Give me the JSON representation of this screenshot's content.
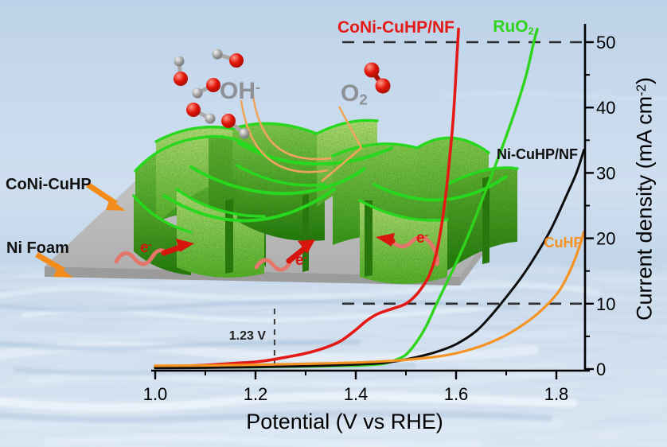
{
  "figure_type": "OER polarization curves with catalyst scheme",
  "inset": {
    "catalyst_label": "CoNi-CuHP",
    "substrate_label": "Ni Foam",
    "hydroxide_base": "OH",
    "hydroxide_sup": "-",
    "oxygen_base": "O",
    "oxygen_sub": "2",
    "electron_base": "e",
    "electron_sup": "-",
    "arrow_color": "#f28c1b",
    "electron_color": "#d8140d",
    "platform_color": "#bcbcbc",
    "nanosheet_color": "#5ab82e"
  },
  "chart_data": {
    "type": "line",
    "title": "",
    "xlabel": "Potential (V vs RHE)",
    "ylabel": "Current density (mA cm-2)",
    "ylabel_parts": [
      "Current density (mA cm",
      "-2",
      ")"
    ],
    "xlim": [
      1.0,
      1.865
    ],
    "ylim": [
      0,
      52.8
    ],
    "grid": false,
    "legend_position": "inline-labels",
    "x_ticks": [
      1.0,
      1.2,
      1.4,
      1.6,
      1.8
    ],
    "x_tick_labels": [
      "1.0",
      "1.2",
      "1.4",
      "1.6",
      "1.8"
    ],
    "x_minor_ticks": [
      1.1,
      1.3,
      1.5,
      1.7
    ],
    "y_ticks": [
      0,
      10,
      20,
      30,
      40,
      50
    ],
    "y_tick_labels": [
      "0",
      "10",
      "20",
      "30",
      "40",
      "50"
    ],
    "y_minor_ticks": [
      5,
      15,
      25,
      35,
      45
    ],
    "reference_hlines": [
      10,
      50
    ],
    "vline": {
      "x": 1.23,
      "label": "1.23 V"
    },
    "series": [
      {
        "name": "CoNi-CuHP/NF",
        "label_base": "CoNi-CuHP/NF",
        "label_sub": "",
        "color": "#e41a17",
        "points": [
          [
            1.0,
            0.3
          ],
          [
            1.05,
            0.45
          ],
          [
            1.1,
            0.6
          ],
          [
            1.15,
            0.85
          ],
          [
            1.2,
            1.1
          ],
          [
            1.23,
            1.4
          ],
          [
            1.26,
            1.8
          ],
          [
            1.3,
            2.4
          ],
          [
            1.34,
            3.3
          ],
          [
            1.37,
            4.3
          ],
          [
            1.4,
            6.0
          ],
          [
            1.42,
            7.3
          ],
          [
            1.44,
            8.3
          ],
          [
            1.46,
            8.9
          ],
          [
            1.48,
            9.4
          ],
          [
            1.5,
            10.0
          ],
          [
            1.52,
            11.3
          ],
          [
            1.54,
            13.4
          ],
          [
            1.55,
            15.0
          ],
          [
            1.56,
            17.5
          ],
          [
            1.57,
            21.5
          ],
          [
            1.58,
            27.0
          ],
          [
            1.59,
            34.5
          ],
          [
            1.595,
            39.0
          ],
          [
            1.6,
            45.5
          ],
          [
            1.603,
            49.5
          ],
          [
            1.605,
            52.0
          ]
        ]
      },
      {
        "name": "RuO2",
        "label_base": "RuO",
        "label_sub": "2",
        "color": "#2fd41c",
        "points": [
          [
            1.0,
            0.2
          ],
          [
            1.1,
            0.25
          ],
          [
            1.2,
            0.3
          ],
          [
            1.3,
            0.4
          ],
          [
            1.4,
            0.55
          ],
          [
            1.44,
            0.7
          ],
          [
            1.46,
            0.9
          ],
          [
            1.48,
            1.4
          ],
          [
            1.5,
            2.2
          ],
          [
            1.52,
            4.0
          ],
          [
            1.54,
            6.5
          ],
          [
            1.56,
            9.8
          ],
          [
            1.58,
            13.0
          ],
          [
            1.6,
            16.2
          ],
          [
            1.63,
            21.5
          ],
          [
            1.66,
            27.5
          ],
          [
            1.69,
            33.5
          ],
          [
            1.72,
            40.0
          ],
          [
            1.74,
            45.0
          ],
          [
            1.755,
            50.0
          ],
          [
            1.762,
            52.0
          ]
        ]
      },
      {
        "name": "Ni-CuHP/NF",
        "label_base": "Ni-CuHP/NF",
        "label_sub": "",
        "color": "#0d0d0d",
        "points": [
          [
            1.0,
            0.15
          ],
          [
            1.1,
            0.2
          ],
          [
            1.2,
            0.3
          ],
          [
            1.3,
            0.45
          ],
          [
            1.4,
            0.7
          ],
          [
            1.45,
            0.9
          ],
          [
            1.48,
            1.2
          ],
          [
            1.52,
            1.8
          ],
          [
            1.56,
            2.6
          ],
          [
            1.6,
            3.8
          ],
          [
            1.64,
            5.8
          ],
          [
            1.67,
            8.2
          ],
          [
            1.7,
            11.0
          ],
          [
            1.73,
            14.0
          ],
          [
            1.76,
            17.5
          ],
          [
            1.79,
            21.5
          ],
          [
            1.82,
            26.5
          ],
          [
            1.84,
            30.0
          ],
          [
            1.855,
            33.5
          ]
        ]
      },
      {
        "name": "CuHP",
        "label_base": "CuHP",
        "label_sub": "",
        "color": "#f59322",
        "points": [
          [
            1.0,
            0.5
          ],
          [
            1.1,
            0.55
          ],
          [
            1.2,
            0.65
          ],
          [
            1.3,
            0.8
          ],
          [
            1.4,
            1.0
          ],
          [
            1.48,
            1.3
          ],
          [
            1.54,
            1.7
          ],
          [
            1.58,
            2.1
          ],
          [
            1.62,
            2.8
          ],
          [
            1.66,
            3.8
          ],
          [
            1.7,
            5.2
          ],
          [
            1.73,
            6.6
          ],
          [
            1.76,
            8.3
          ],
          [
            1.79,
            10.5
          ],
          [
            1.81,
            12.5
          ],
          [
            1.83,
            15.5
          ],
          [
            1.845,
            18.5
          ],
          [
            1.855,
            21.0
          ]
        ]
      }
    ]
  }
}
